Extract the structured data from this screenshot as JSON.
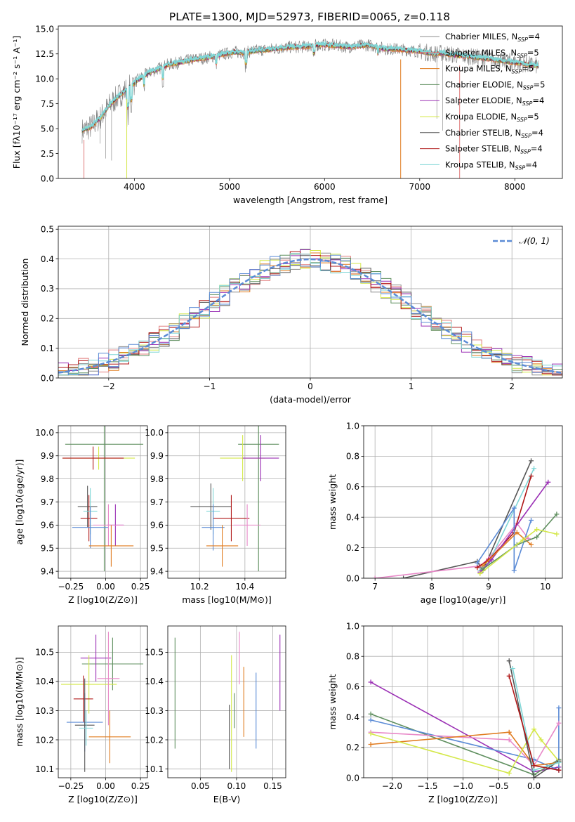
{
  "figure": {
    "title": "PLATE=1300, MJD=52973, FIBERID=0065, z=0.118"
  },
  "colors": {
    "chabrier_miles": "#8c8c8c",
    "salpeter_miles": "#e07b7b",
    "kroupa_miles": "#e07b1f",
    "chabrier_elodie": "#5f8f5f",
    "salpeter_elodie": "#9b30b5",
    "kroupa_elodie": "#d4e84a",
    "chabrier_stelib": "#555555",
    "salpeter_stelib": "#b01818",
    "kroupa_stelib": "#7fd6d6",
    "normal": "#5b8bd6",
    "pink": "#e888c8",
    "blue": "#5b8bd6"
  },
  "chart_data": [
    {
      "id": "spectrum",
      "type": "line",
      "xlabel": "wavelength [Angstrom, rest frame]",
      "ylabel": "Flux [fλ10⁻¹⁷ erg cm⁻² s⁻¹ A⁻¹]",
      "xlim": [
        3200,
        8500
      ],
      "ylim": [
        0,
        15.3
      ],
      "xticks": [
        4000,
        5000,
        6000,
        7000,
        8000
      ],
      "yticks": [
        0.0,
        2.5,
        5.0,
        7.5,
        10.0,
        12.5,
        15.0
      ],
      "legend": "right",
      "series": [
        {
          "name": "Chabrier MILES, NSSP=4",
          "color_key": "chabrier_miles"
        },
        {
          "name": "Salpeter MILES, NSSP=5",
          "color_key": "salpeter_miles"
        },
        {
          "name": "Kroupa MILES, NSSP=5",
          "color_key": "kroupa_miles"
        },
        {
          "name": "Chabrier ELODIE, NSSP=5",
          "color_key": "chabrier_elodie"
        },
        {
          "name": "Salpeter ELODIE, NSSP=4",
          "color_key": "salpeter_elodie"
        },
        {
          "name": "Kroupa ELODIE, NSSP=5",
          "color_key": "kroupa_elodie"
        },
        {
          "name": "Chabrier STELIB, NSSP=4",
          "color_key": "chabrier_stelib"
        },
        {
          "name": "Salpeter STELIB, NSSP=4",
          "color_key": "salpeter_stelib"
        },
        {
          "name": "Kroupa STELIB, NSSP=4",
          "color_key": "kroupa_stelib"
        }
      ],
      "continuum": {
        "x": [
          3450,
          3550,
          3650,
          3750,
          3850,
          3950,
          4050,
          4150,
          4250,
          4350,
          4450,
          4550,
          4650,
          4750,
          4850,
          4950,
          5050,
          5150,
          5250,
          5350,
          5450,
          5550,
          5650,
          5750,
          5850,
          5950,
          6050,
          6150,
          6250,
          6350,
          6450,
          6550,
          6650,
          6750,
          6850,
          6950,
          7050,
          7150,
          7250,
          7350,
          7450,
          7550,
          7650,
          7750,
          7850,
          7950,
          8050,
          8150,
          8250
        ],
        "y": [
          4.8,
          5.2,
          6.2,
          7.5,
          8.4,
          9.2,
          10.0,
          10.6,
          11.0,
          11.4,
          11.6,
          11.8,
          12.0,
          12.1,
          12.3,
          12.5,
          12.7,
          12.6,
          12.8,
          12.9,
          13.0,
          13.1,
          13.2,
          13.2,
          13.3,
          13.4,
          13.4,
          13.3,
          13.2,
          13.3,
          13.4,
          13.2,
          13.0,
          13.0,
          12.9,
          12.8,
          12.7,
          12.5,
          12.6,
          12.4,
          12.3,
          12.2,
          12.1,
          12.0,
          11.8,
          11.7,
          11.6,
          11.4,
          11.3
        ]
      }
    },
    {
      "id": "residuals",
      "type": "histogram",
      "xlabel": "(data-model)/error",
      "ylabel": "Normed distribution",
      "xlim": [
        -2.5,
        2.5
      ],
      "ylim": [
        0,
        0.51
      ],
      "xticks": [
        -2,
        -1,
        0,
        1,
        2
      ],
      "yticks": [
        0.0,
        0.1,
        0.2,
        0.3,
        0.4,
        0.5
      ],
      "legend": "top-right",
      "normal_label": "𝒩(0, 1)",
      "bin_width": 0.1
    },
    {
      "id": "age_vs_Z",
      "type": "errorbar",
      "xlabel": "Z [log10(Z/Z⊙)]",
      "ylabel": "age  [log10(age/yr)]",
      "xlim": [
        -0.34,
        0.3
      ],
      "ylim": [
        9.37,
        10.03
      ],
      "xticks": [
        -0.25,
        0.0,
        0.25
      ],
      "yticks": [
        9.4,
        9.5,
        9.6,
        9.7,
        9.8,
        9.9,
        10.0
      ],
      "points": [
        {
          "x": -0.01,
          "y": 9.95,
          "xerr": 0.28,
          "yerr": 0.55,
          "color_key": "chabrier_elodie"
        },
        {
          "x": -0.05,
          "y": 9.89,
          "xerr": 0.26,
          "yerr": 0.05,
          "color_key": "kroupa_elodie"
        },
        {
          "x": -0.09,
          "y": 9.89,
          "xerr": 0.22,
          "yerr": 0.05,
          "color_key": "salpeter_stelib"
        },
        {
          "x": -0.13,
          "y": 9.68,
          "xerr": 0.07,
          "yerr": 0.09,
          "color_key": "chabrier_stelib"
        },
        {
          "x": -0.12,
          "y": 9.63,
          "xerr": 0.06,
          "yerr": 0.1,
          "color_key": "salpeter_stelib"
        },
        {
          "x": -0.11,
          "y": 9.66,
          "xerr": 0.05,
          "yerr": 0.1,
          "color_key": "kroupa_stelib"
        },
        {
          "x": 0.07,
          "y": 9.6,
          "xerr": 0.06,
          "yerr": 0.09,
          "color_key": "salpeter_elodie"
        },
        {
          "x": -0.11,
          "y": 9.59,
          "xerr": 0.13,
          "yerr": 0.09,
          "color_key": "blue"
        },
        {
          "x": 0.02,
          "y": 9.6,
          "xerr": 0.11,
          "yerr": 0.09,
          "color_key": "pink"
        },
        {
          "x": 0.04,
          "y": 9.51,
          "xerr": 0.16,
          "yerr": 0.09,
          "color_key": "kroupa_miles"
        }
      ]
    },
    {
      "id": "age_vs_mass",
      "type": "errorbar",
      "xlabel": "mass [log10(M/M⊙)]",
      "ylabel": "",
      "xlim": [
        10.06,
        10.58
      ],
      "ylim": [
        9.37,
        10.03
      ],
      "xticks": [
        10.2,
        10.4
      ],
      "yticks": [
        9.4,
        9.5,
        9.6,
        9.7,
        9.8,
        9.9,
        10.0
      ],
      "points": [
        {
          "x": 10.46,
          "y": 9.95,
          "xerr": 0.09,
          "yerr": 0.55,
          "color_key": "chabrier_elodie"
        },
        {
          "x": 10.39,
          "y": 9.89,
          "xerr": 0.1,
          "yerr": 0.1,
          "color_key": "kroupa_elodie"
        },
        {
          "x": 10.47,
          "y": 9.89,
          "xerr": 0.08,
          "yerr": 0.1,
          "color_key": "salpeter_elodie"
        },
        {
          "x": 10.25,
          "y": 9.68,
          "xerr": 0.09,
          "yerr": 0.1,
          "color_key": "chabrier_stelib"
        },
        {
          "x": 10.34,
          "y": 9.63,
          "xerr": 0.08,
          "yerr": 0.1,
          "color_key": "salpeter_stelib"
        },
        {
          "x": 10.26,
          "y": 9.66,
          "xerr": 0.03,
          "yerr": 0.1,
          "color_key": "kroupa_stelib"
        },
        {
          "x": 10.26,
          "y": 9.59,
          "xerr": 0.05,
          "yerr": 0.1,
          "color_key": "blue"
        },
        {
          "x": 10.41,
          "y": 9.6,
          "xerr": 0.06,
          "yerr": 0.09,
          "color_key": "pink"
        },
        {
          "x": 10.3,
          "y": 9.51,
          "xerr": 0.07,
          "yerr": 0.09,
          "color_key": "kroupa_miles"
        }
      ]
    },
    {
      "id": "weight_vs_age",
      "type": "line",
      "xlabel": "age  [log10(age/yr)]",
      "ylabel": "mass weight",
      "xlim": [
        6.8,
        10.3
      ],
      "ylim": [
        0.0,
        1.0
      ],
      "xticks": [
        7,
        8,
        9,
        10
      ],
      "yticks": [
        0.0,
        0.2,
        0.4,
        0.6,
        0.8,
        1.0
      ],
      "series": [
        {
          "color_key": "chabrier_stelib",
          "x": [
            7.5,
            8.8,
            8.9,
            9.75
          ],
          "y": [
            0.0,
            0.11,
            0.05,
            0.77
          ]
        },
        {
          "color_key": "pink",
          "x": [
            7.0,
            8.85,
            9.0,
            9.5,
            9.7
          ],
          "y": [
            0.0,
            0.08,
            0.13,
            0.36,
            0.26
          ]
        },
        {
          "color_key": "kroupa_stelib",
          "x": [
            8.85,
            9.0,
            9.8
          ],
          "y": [
            0.05,
            0.1,
            0.72
          ]
        },
        {
          "color_key": "salpeter_stelib",
          "x": [
            8.8,
            9.0,
            9.45,
            9.75
          ],
          "y": [
            0.07,
            0.12,
            0.3,
            0.67
          ]
        },
        {
          "color_key": "salpeter_elodie",
          "x": [
            8.85,
            9.05,
            10.05
          ],
          "y": [
            0.04,
            0.12,
            0.63
          ]
        },
        {
          "color_key": "blue",
          "x": [
            8.8,
            9.45,
            9.45,
            9.75
          ],
          "y": [
            0.1,
            0.46,
            0.05,
            0.38
          ]
        },
        {
          "color_key": "kroupa_miles",
          "x": [
            8.9,
            9.5,
            9.75
          ],
          "y": [
            0.08,
            0.3,
            0.22
          ]
        },
        {
          "color_key": "chabrier_elodie",
          "x": [
            8.9,
            9.5,
            9.85,
            10.2
          ],
          "y": [
            0.06,
            0.22,
            0.27,
            0.42
          ]
        },
        {
          "color_key": "kroupa_elodie",
          "x": [
            8.85,
            9.6,
            9.85,
            10.2
          ],
          "y": [
            0.03,
            0.25,
            0.32,
            0.29
          ]
        }
      ]
    },
    {
      "id": "mass_vs_Z",
      "type": "errorbar",
      "xlabel": "Z [log10(Z/Z⊙)]",
      "ylabel": "mass [log10(M/M⊙)]",
      "xlim": [
        -0.34,
        0.3
      ],
      "ylim": [
        10.07,
        10.59
      ],
      "xticks": [
        -0.25,
        0.0,
        0.25
      ],
      "yticks": [
        10.1,
        10.2,
        10.3,
        10.4,
        10.5
      ],
      "points": [
        {
          "x": 0.05,
          "y": 10.46,
          "xerr": 0.22,
          "yerr": 0.09,
          "color_key": "chabrier_elodie"
        },
        {
          "x": -0.07,
          "y": 10.48,
          "xerr": 0.11,
          "yerr": 0.08,
          "color_key": "salpeter_elodie"
        },
        {
          "x": -0.12,
          "y": 10.39,
          "xerr": 0.2,
          "yerr": 0.1,
          "color_key": "kroupa_elodie"
        },
        {
          "x": 0.02,
          "y": 10.41,
          "xerr": 0.08,
          "yerr": 0.16,
          "color_key": "pink"
        },
        {
          "x": -0.16,
          "y": 10.34,
          "xerr": 0.07,
          "yerr": 0.08,
          "color_key": "salpeter_stelib"
        },
        {
          "x": -0.15,
          "y": 10.26,
          "xerr": 0.13,
          "yerr": 0.1,
          "color_key": "blue"
        },
        {
          "x": -0.15,
          "y": 10.25,
          "xerr": 0.07,
          "yerr": 0.16,
          "color_key": "chabrier_stelib"
        },
        {
          "x": -0.14,
          "y": 10.24,
          "xerr": 0.05,
          "yerr": 0.06,
          "color_key": "kroupa_stelib"
        },
        {
          "x": 0.03,
          "y": 10.21,
          "xerr": 0.15,
          "yerr": 0.09,
          "color_key": "kroupa_miles"
        }
      ]
    },
    {
      "id": "mass_vs_ebv",
      "type": "errorbar",
      "xlabel": "E(B-V)",
      "ylabel": "",
      "xlim": [
        0.005,
        0.168
      ],
      "ylim": [
        10.07,
        10.59
      ],
      "xticks": [
        0.05,
        0.1,
        0.15
      ],
      "yticks": [
        10.1,
        10.2,
        10.3,
        10.4,
        10.5
      ],
      "points": [
        {
          "x": 0.015,
          "y": 10.36,
          "yerr": 0.19,
          "color_key": "chabrier_elodie"
        },
        {
          "x": 0.09,
          "y": 10.21,
          "yerr": 0.11,
          "color_key": "chabrier_stelib"
        },
        {
          "x": 0.093,
          "y": 10.29,
          "yerr": 0.2,
          "color_key": "kroupa_elodie"
        },
        {
          "x": 0.097,
          "y": 10.3,
          "yerr": 0.06,
          "color_key": "chabrier_elodie"
        },
        {
          "x": 0.104,
          "y": 10.48,
          "yerr": 0.09,
          "color_key": "pink"
        },
        {
          "x": 0.11,
          "y": 10.33,
          "yerr": 0.12,
          "color_key": "kroupa_miles"
        },
        {
          "x": 0.127,
          "y": 10.3,
          "yerr": 0.13,
          "color_key": "blue"
        },
        {
          "x": 0.16,
          "y": 10.43,
          "yerr": 0.13,
          "color_key": "salpeter_elodie"
        }
      ]
    },
    {
      "id": "weight_vs_Z",
      "type": "line",
      "xlabel": "Z [log10(Z/Z⊙)]",
      "ylabel": "mass weight",
      "xlim": [
        -2.4,
        0.4
      ],
      "ylim": [
        0.0,
        1.0
      ],
      "xticks": [
        -2.0,
        -1.5,
        -1.0,
        -0.5,
        0.0
      ],
      "yticks": [
        0.0,
        0.2,
        0.4,
        0.6,
        0.8,
        1.0
      ],
      "series": [
        {
          "color_key": "salpeter_elodie",
          "x": [
            -2.3,
            0.0,
            0.35
          ],
          "y": [
            0.63,
            0.04,
            0.07
          ]
        },
        {
          "color_key": "chabrier_elodie",
          "x": [
            -2.3,
            0.0,
            0.35
          ],
          "y": [
            0.42,
            0.02,
            0.12
          ]
        },
        {
          "color_key": "blue",
          "x": [
            -2.3,
            0.0,
            0.35,
            0.35
          ],
          "y": [
            0.38,
            0.12,
            0.05,
            0.46
          ]
        },
        {
          "color_key": "pink",
          "x": [
            -2.3,
            -0.35,
            0.0,
            0.35
          ],
          "y": [
            0.3,
            0.25,
            0.08,
            0.36
          ]
        },
        {
          "color_key": "kroupa_miles",
          "x": [
            -2.3,
            -0.35,
            0.0,
            0.35
          ],
          "y": [
            0.22,
            0.3,
            0.08,
            0.1
          ]
        },
        {
          "color_key": "kroupa_elodie",
          "x": [
            -2.3,
            -0.35,
            0.0,
            0.1,
            0.35
          ],
          "y": [
            0.29,
            0.03,
            0.32,
            0.25,
            0.11
          ]
        },
        {
          "color_key": "chabrier_stelib",
          "x": [
            -0.35,
            0.0,
            0.35
          ],
          "y": [
            0.77,
            0.0,
            0.11
          ]
        },
        {
          "color_key": "kroupa_stelib",
          "x": [
            -0.3,
            0.0,
            0.35
          ],
          "y": [
            0.72,
            0.05,
            0.1
          ]
        },
        {
          "color_key": "salpeter_stelib",
          "x": [
            -0.35,
            0.0,
            0.35
          ],
          "y": [
            0.67,
            0.08,
            0.05
          ]
        }
      ]
    }
  ]
}
